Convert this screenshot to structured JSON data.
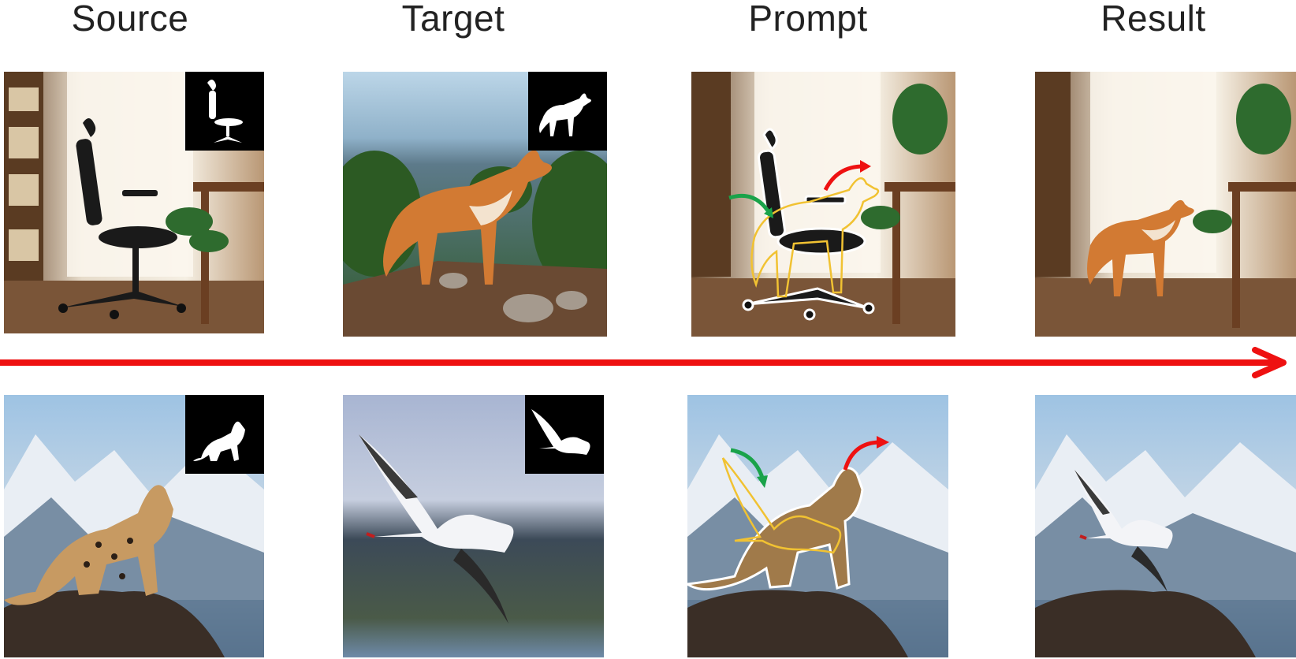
{
  "figure": {
    "columns": [
      {
        "id": "source",
        "label": "Source"
      },
      {
        "id": "target",
        "label": "Target"
      },
      {
        "id": "prompt",
        "label": "Prompt"
      },
      {
        "id": "result",
        "label": "Result"
      }
    ],
    "rows": [
      {
        "id": "row1",
        "source": {
          "subject": "office chair",
          "scene": "sunlit room with bookshelf and desk"
        },
        "target": {
          "subject": "dingo",
          "scene": "hillside with trees"
        },
        "prompt": {
          "subject": "chair with dingo outline and arrows"
        },
        "result": {
          "subject": "dingo in room"
        }
      },
      {
        "id": "row2",
        "source": {
          "subject": "snow leopard",
          "scene": "snowy mountains"
        },
        "target": {
          "subject": "seagull",
          "scene": "lake"
        },
        "prompt": {
          "subject": "leopard with seagull outline and arrows"
        },
        "result": {
          "subject": "seagull over rock"
        }
      }
    ],
    "colors": {
      "arrow_main": "#ee1111",
      "arrow_green": "#1aa34a",
      "arrow_red": "#ee1111",
      "outline_yellow": "#f1c232",
      "outline_white": "#ffffff"
    },
    "icons": {
      "mask_chair": "chair-silhouette-icon",
      "mask_dog": "dog-silhouette-icon",
      "mask_cat": "cat-silhouette-icon",
      "mask_bird": "bird-silhouette-icon"
    }
  }
}
